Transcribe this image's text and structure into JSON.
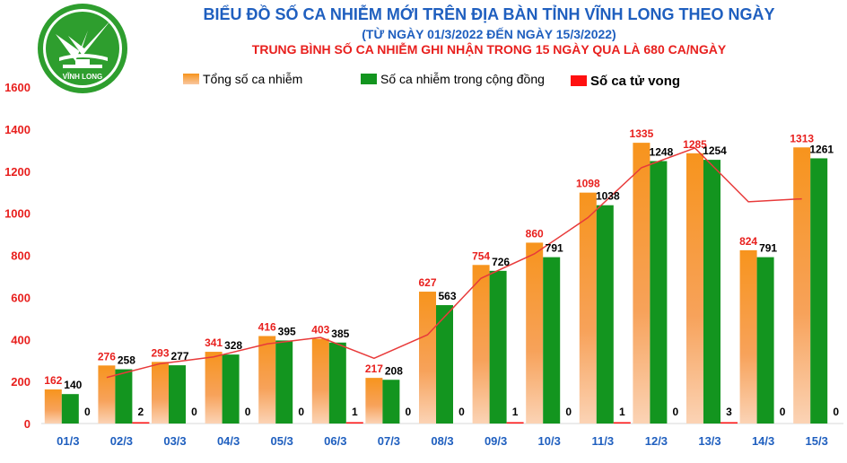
{
  "header": {
    "title": "BIỂU ĐỒ SỐ CA NHIỄM MỚI TRÊN ĐỊA BÀN TỈNH VĨNH LONG THEO NGÀY",
    "subtitle": "(TỪ NGÀY 01/3/2022 ĐẾN NGÀY 15/3/2022)",
    "note": "TRUNG BÌNH SỐ CA NHIỄM GHI NHẬN TRONG 15 NGÀY QUA LÀ 680 CA/NGÀY"
  },
  "logo": {
    "text": "VĨNH LONG",
    "color": "#2e9e2e"
  },
  "legend": [
    {
      "label": "Tổng số ca nhiễm",
      "color": "#f7941d"
    },
    {
      "label": "Số ca nhiễm trong cộng đồng",
      "color": "#13951f"
    },
    {
      "label": "Số ca tử vong",
      "color": "#ff1010"
    }
  ],
  "colors": {
    "total": "#f7941d",
    "community": "#13951f",
    "deaths": "#ff1010",
    "trend": "#e83a3a",
    "total_label": "#e8201e",
    "axis_label": "#1f5fbf"
  },
  "chart_data": {
    "type": "bar",
    "categories": [
      "01/3",
      "02/3",
      "03/3",
      "04/3",
      "05/3",
      "06/3",
      "07/3",
      "08/3",
      "09/3",
      "10/3",
      "11/3",
      "12/3",
      "13/3",
      "14/3",
      "15/3"
    ],
    "series": [
      {
        "name": "Tổng số ca nhiễm",
        "values": [
          162,
          276,
          293,
          341,
          416,
          403,
          217,
          627,
          754,
          860,
          1098,
          1335,
          1285,
          824,
          1313
        ]
      },
      {
        "name": "Số ca nhiễm trong cộng đồng",
        "values": [
          140,
          258,
          277,
          328,
          395,
          385,
          208,
          563,
          726,
          791,
          1038,
          1248,
          1254,
          791,
          1261
        ]
      },
      {
        "name": "Số ca tử vong",
        "values": [
          0,
          2,
          0,
          0,
          0,
          1,
          0,
          0,
          1,
          0,
          1,
          0,
          3,
          0,
          0
        ]
      }
    ],
    "trendline": {
      "type": "moving-average",
      "period": 2,
      "series": "Tổng số ca nhiễm"
    },
    "yticks": [
      0,
      200,
      400,
      600,
      800,
      1000,
      1200,
      1400,
      1600
    ],
    "ylim": [
      0,
      1600
    ],
    "grid": false,
    "legend_position": "top"
  }
}
